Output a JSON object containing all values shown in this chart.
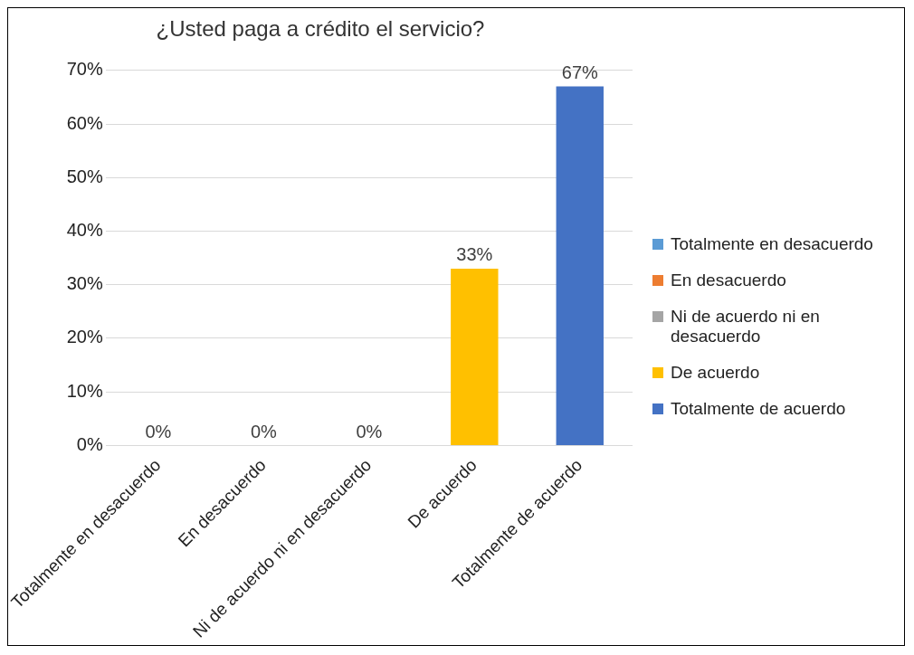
{
  "chart_data": {
    "type": "bar",
    "title": "¿Usted paga a crédito el servicio?",
    "categories": [
      "Totalmente en desacuerdo",
      "En desacuerdo",
      "Ni de acuerdo ni en desacuerdo",
      "De acuerdo",
      "Totalmente de acuerdo"
    ],
    "series": [
      {
        "name": "Totalmente en desacuerdo",
        "color": "#5b9bd5",
        "values": [
          0,
          null,
          null,
          null,
          null
        ],
        "value_labels": [
          "0%",
          null,
          null,
          null,
          null
        ]
      },
      {
        "name": "En desacuerdo",
        "color": "#ed7d31",
        "values": [
          null,
          0,
          null,
          null,
          null
        ],
        "value_labels": [
          null,
          "0%",
          null,
          null,
          null
        ]
      },
      {
        "name": "Ni de acuerdo ni en desacuerdo",
        "color": "#a5a5a5",
        "values": [
          null,
          null,
          0,
          null,
          null
        ],
        "value_labels": [
          null,
          null,
          "0%",
          null,
          null
        ]
      },
      {
        "name": "De acuerdo",
        "color": "#ffc000",
        "values": [
          null,
          null,
          null,
          33,
          null
        ],
        "value_labels": [
          null,
          null,
          null,
          "33%",
          null
        ]
      },
      {
        "name": "Totalmente de acuerdo",
        "color": "#4472c4",
        "values": [
          null,
          null,
          null,
          null,
          67
        ],
        "value_labels": [
          null,
          null,
          null,
          null,
          "67%"
        ]
      }
    ],
    "ylim": [
      0,
      70
    ],
    "yticks": [
      {
        "value": 0,
        "label": "0%"
      },
      {
        "value": 10,
        "label": "10%"
      },
      {
        "value": 20,
        "label": "20%"
      },
      {
        "value": 30,
        "label": "30%"
      },
      {
        "value": 40,
        "label": "40%"
      },
      {
        "value": 50,
        "label": "50%"
      },
      {
        "value": 60,
        "label": "60%"
      },
      {
        "value": 70,
        "label": "70%"
      }
    ],
    "grid": "y",
    "legend": "right"
  }
}
